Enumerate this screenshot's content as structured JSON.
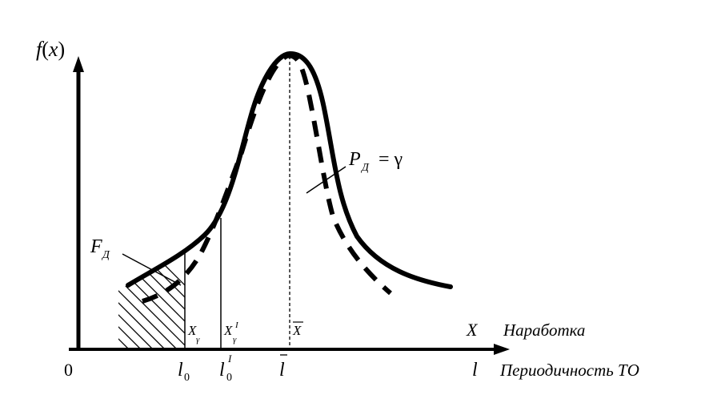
{
  "axes": {
    "y_label_f": "f",
    "y_label_paren_open": "(",
    "y_label_x": "x",
    "y_label_paren_close": ")",
    "origin": "0",
    "x_symbol_top": "X",
    "x_caption_top": "Наработка",
    "x_symbol_bottom": "l",
    "x_caption_bottom": "Периодичность ТО"
  },
  "markers": {
    "l0": "l",
    "l0_sub": "0",
    "l0I": "l",
    "l0I_sub": "0",
    "l0I_sup": "I",
    "lbar": "l",
    "X_gamma": "X",
    "X_gamma_sub": "γ",
    "X_gamma_I": "X",
    "X_gamma_I_sub": "γ",
    "X_gamma_I_sup": "I",
    "Xbar": "X"
  },
  "annotations": {
    "F_main": "F",
    "F_sub": "Д",
    "P_main": "P",
    "P_sub": "Д",
    "P_eq": "= γ"
  }
}
